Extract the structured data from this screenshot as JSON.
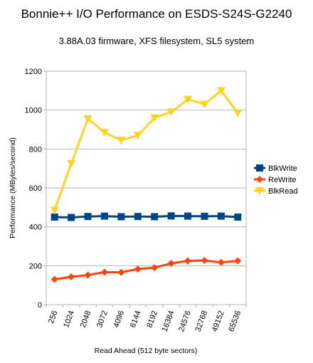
{
  "chart_data": {
    "type": "line",
    "title": "Bonnie++ I/O Performance on ESDS-S24S-G2240",
    "subtitle": "3.88A.03 firmware, XFS filesystem, SL5 system",
    "xlabel": "Read Ahead (512 byte sectors)",
    "ylabel": "Performance (MBytes/second)",
    "categories": [
      "256",
      "1024",
      "2048",
      "3072",
      "4096",
      "6144",
      "8192",
      "16384",
      "24576",
      "32768",
      "49152",
      "65536"
    ],
    "ylim": [
      0,
      1200
    ],
    "yticks": [
      0,
      200,
      400,
      600,
      800,
      1000,
      1200
    ],
    "grid": "horizontal",
    "legend_position": "right",
    "series": [
      {
        "name": "BlkWrite",
        "color": "#004586",
        "marker": "square",
        "values": [
          450,
          448,
          453,
          455,
          452,
          453,
          452,
          456,
          455,
          454,
          455,
          450
        ]
      },
      {
        "name": "ReWrite",
        "color": "#ff420e",
        "marker": "diamond",
        "values": [
          130,
          143,
          152,
          167,
          166,
          183,
          190,
          212,
          225,
          227,
          217,
          225
        ]
      },
      {
        "name": "BlkRead",
        "color": "#ffd320",
        "marker": "triangle-down",
        "values": [
          485,
          725,
          955,
          885,
          845,
          870,
          960,
          990,
          1055,
          1030,
          1100,
          985
        ]
      }
    ]
  }
}
